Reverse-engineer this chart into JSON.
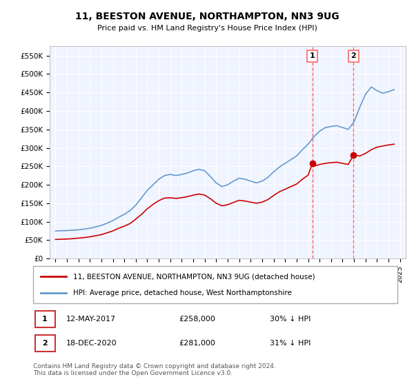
{
  "title": "11, BEESTON AVENUE, NORTHAMPTON, NN3 9UG",
  "subtitle": "Price paid vs. HM Land Registry's House Price Index (HPI)",
  "ylim": [
    0,
    575000
  ],
  "yticks": [
    0,
    50000,
    100000,
    150000,
    200000,
    250000,
    300000,
    350000,
    400000,
    450000,
    500000,
    550000
  ],
  "ytick_labels": [
    "£0",
    "£50K",
    "£100K",
    "£150K",
    "£200K",
    "£250K",
    "£300K",
    "£350K",
    "£400K",
    "£450K",
    "£500K",
    "£550K"
  ],
  "hpi_color": "#6699cc",
  "price_color": "#cc0000",
  "dashed_color": "#ff6666",
  "background_color": "#f0f4ff",
  "sale1": {
    "date_num": 2017.37,
    "price": 258000,
    "label": "1"
  },
  "sale2": {
    "date_num": 2020.96,
    "price": 281000,
    "label": "2"
  },
  "legend1_text": "11, BEESTON AVENUE, NORTHAMPTON, NN3 9UG (detached house)",
  "legend2_text": "HPI: Average price, detached house, West Northamptonshire",
  "annotation1": "1    12-MAY-2017         £258,000        30% ↓ HPI",
  "annotation2": "2    18-DEC-2020         £281,000        31% ↓ HPI",
  "footer": "Contains HM Land Registry data © Crown copyright and database right 2024.\nThis data is licensed under the Open Government Licence v3.0.",
  "hpi_data_x": [
    1995,
    1995.5,
    1996,
    1996.5,
    1997,
    1997.5,
    1998,
    1998.5,
    1999,
    1999.5,
    2000,
    2000.5,
    2001,
    2001.5,
    2002,
    2002.5,
    2003,
    2003.5,
    2004,
    2004.5,
    2005,
    2005.5,
    2006,
    2006.5,
    2007,
    2007.5,
    2008,
    2008.5,
    2009,
    2009.5,
    2010,
    2010.5,
    2011,
    2011.5,
    2012,
    2012.5,
    2013,
    2013.5,
    2014,
    2014.5,
    2015,
    2015.5,
    2016,
    2016.5,
    2017,
    2017.5,
    2018,
    2018.5,
    2019,
    2019.5,
    2020,
    2020.5,
    2021,
    2021.5,
    2022,
    2022.5,
    2023,
    2023.5,
    2024,
    2024.5
  ],
  "hpi_data_y": [
    75000,
    75500,
    76000,
    77000,
    78000,
    80000,
    82000,
    86000,
    90000,
    96000,
    103000,
    112000,
    120000,
    130000,
    145000,
    165000,
    185000,
    200000,
    215000,
    225000,
    228000,
    225000,
    228000,
    232000,
    238000,
    242000,
    238000,
    222000,
    205000,
    195000,
    200000,
    210000,
    218000,
    215000,
    210000,
    205000,
    210000,
    220000,
    235000,
    248000,
    258000,
    268000,
    278000,
    295000,
    310000,
    330000,
    345000,
    355000,
    358000,
    360000,
    355000,
    350000,
    370000,
    410000,
    445000,
    465000,
    455000,
    448000,
    452000,
    458000
  ],
  "price_data_x": [
    1995,
    1995.5,
    1996,
    1996.5,
    1997,
    1997.5,
    1998,
    1998.5,
    1999,
    1999.5,
    2000,
    2000.5,
    2001,
    2001.5,
    2002,
    2002.5,
    2003,
    2003.5,
    2004,
    2004.5,
    2005,
    2005.5,
    2006,
    2006.5,
    2007,
    2007.5,
    2008,
    2008.5,
    2009,
    2009.5,
    2010,
    2010.5,
    2011,
    2011.5,
    2012,
    2012.5,
    2013,
    2013.5,
    2014,
    2014.5,
    2015,
    2015.5,
    2016,
    2016.5,
    2017,
    2017.37,
    2017.5,
    2018,
    2018.5,
    2019,
    2019.5,
    2020,
    2020.5,
    2020.96,
    2021,
    2021.5,
    2022,
    2022.5,
    2023,
    2023.5,
    2024,
    2024.5
  ],
  "price_data_y": [
    52000,
    52500,
    53000,
    54000,
    55500,
    57000,
    59000,
    62000,
    65000,
    70000,
    75000,
    82000,
    88000,
    95000,
    107000,
    120000,
    135000,
    147000,
    157000,
    164000,
    165000,
    163000,
    165000,
    168000,
    172000,
    175000,
    172000,
    162000,
    150000,
    143000,
    146000,
    152000,
    158000,
    156000,
    153000,
    150000,
    153000,
    160000,
    171000,
    181000,
    188000,
    195000,
    202000,
    215000,
    226000,
    258000,
    250000,
    255000,
    258000,
    260000,
    261000,
    258000,
    255000,
    281000,
    280000,
    278000,
    285000,
    295000,
    302000,
    305000,
    308000,
    310000
  ]
}
